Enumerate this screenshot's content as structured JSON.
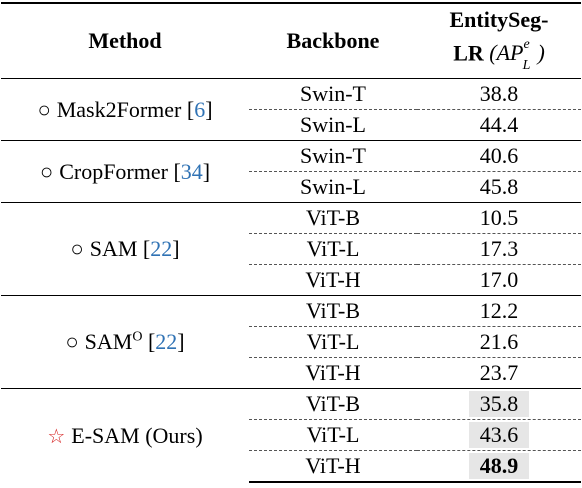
{
  "headers": {
    "method": "Method",
    "backbone": "Backbone",
    "score_line1": "EntitySeg-",
    "score_line2": "LR",
    "metric_base": "(AP",
    "metric_sup": "e",
    "metric_sub": "L",
    "metric_close": ")"
  },
  "groups": [
    {
      "marker": "○",
      "name": "Mask2Former",
      "superscript": "",
      "ref": "6",
      "rows": [
        {
          "backbone": "Swin-T",
          "score": "38.8"
        },
        {
          "backbone": "Swin-L",
          "score": "44.4"
        }
      ]
    },
    {
      "marker": "○",
      "name": "CropFormer",
      "superscript": "",
      "ref": "34",
      "rows": [
        {
          "backbone": "Swin-T",
          "score": "40.6"
        },
        {
          "backbone": "Swin-L",
          "score": "45.8"
        }
      ]
    },
    {
      "marker": "○",
      "name": "SAM",
      "superscript": "",
      "ref": "22",
      "rows": [
        {
          "backbone": "ViT-B",
          "score": "10.5"
        },
        {
          "backbone": "ViT-L",
          "score": "17.3"
        },
        {
          "backbone": "ViT-H",
          "score": "17.0"
        }
      ]
    },
    {
      "marker": "○",
      "name": "SAM",
      "superscript": "O",
      "ref": "22",
      "rows": [
        {
          "backbone": "ViT-B",
          "score": "12.2"
        },
        {
          "backbone": "ViT-L",
          "score": "21.6"
        },
        {
          "backbone": "ViT-H",
          "score": "23.7"
        }
      ]
    },
    {
      "marker": "☆",
      "name": "E-SAM (Ours)",
      "superscript": "",
      "ref": "",
      "highlight": true,
      "best_row": 2,
      "rows": [
        {
          "backbone": "ViT-B",
          "score": "35.8"
        },
        {
          "backbone": "ViT-L",
          "score": "43.6"
        },
        {
          "backbone": "ViT-H",
          "score": "48.9"
        }
      ]
    }
  ],
  "colors": {
    "reference_link": "#2f72b4",
    "ours_star": "#d62222",
    "highlight_background": "#e6e6e6"
  }
}
